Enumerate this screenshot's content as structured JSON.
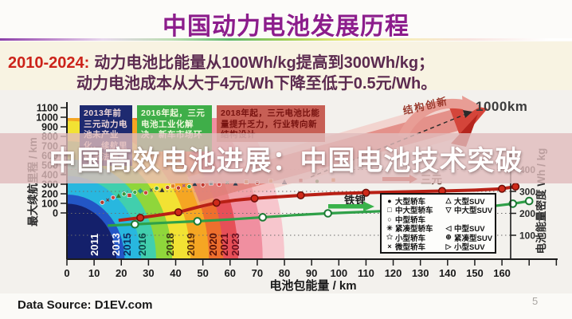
{
  "header": {
    "title": "中国动力电池发展历程"
  },
  "banner": {
    "period": "2010-2024:",
    "line1": "动力电池比能量从100Wh/kg提高到300Wh/kg；",
    "line2": "动力电池成本从大于4元/Wh下降至低于0.5元/Wh。"
  },
  "watermark": {
    "text": "中国高效电池进展：中国电池技术突破"
  },
  "footer": {
    "source": "Data Source: D1EV.com",
    "page": "5"
  },
  "chart_data": {
    "type": "line",
    "title": "中国动力电池发展历程",
    "x_axis": {
      "label": "电池包能量 / km",
      "ticks": [
        0,
        10,
        20,
        30,
        40,
        50,
        60,
        70,
        80,
        90,
        100,
        110,
        120,
        130,
        140,
        150,
        160
      ],
      "range": [
        0,
        160
      ]
    },
    "y_axis_left": {
      "label": "最大续航里程 / km",
      "ticks": [
        1100,
        1000,
        900,
        800,
        700,
        600,
        500,
        400,
        300,
        200,
        100,
        0
      ],
      "range": [
        0,
        1100
      ]
    },
    "y_axis_right": {
      "label": "电池能量密度 Wh / kg",
      "ticks": [
        400,
        300,
        200,
        100
      ],
      "range": [
        0,
        400
      ],
      "gridlines": [
        400,
        300,
        200,
        100
      ]
    },
    "annotations": {
      "innovation": "结构创新",
      "target": "1000km",
      "ternary": "三元",
      "lfp": "铁锂"
    },
    "info_boxes": [
      {
        "text": "2013年前三元动力电池未产业化，续航里程无法满足"
      },
      {
        "text": "2016年起，三元电池工业化解决，新车市场环"
      },
      {
        "text": "2018年起，三元电池比能量提升乏力，行业转向新结构设计"
      }
    ],
    "year_bands": [
      {
        "color": "#14206b",
        "outer_kwh": 18.2
      },
      {
        "color": "#2356c6",
        "outer_kwh": 21.2
      },
      {
        "color": "#28b7df",
        "outer_kwh": 27.3
      },
      {
        "color": "#41cfad",
        "outer_kwh": 32.8
      },
      {
        "color": "#8fd63b",
        "outer_kwh": 38.7
      },
      {
        "color": "#f2e233",
        "outer_kwh": 45.4
      },
      {
        "color": "#f5a623",
        "outer_kwh": 52.2
      },
      {
        "color": "#ee6f2d",
        "outer_kwh": 57.5
      },
      {
        "color": "#e64f58",
        "outer_kwh": 63.0
      },
      {
        "color": "#f08fa0",
        "outer_kwh": 72.0
      },
      {
        "color": "#f7c6cd",
        "outer_kwh": 80.0
      }
    ],
    "year_labels": [
      {
        "year": "2011",
        "x_kwh": 11.4,
        "color": "#ffffff"
      },
      {
        "year": "2013",
        "x_kwh": 19.3,
        "color": "#ffffff"
      },
      {
        "year": "2015",
        "x_kwh": 23.4,
        "color": "#0d2a5e"
      },
      {
        "year": "2016",
        "x_kwh": 29.0,
        "color": "#0d4a4a"
      },
      {
        "year": "2018",
        "x_kwh": 39.3,
        "color": "#3a3a10"
      },
      {
        "year": "2019",
        "x_kwh": 46.9,
        "color": "#5a2d08"
      },
      {
        "year": "2020",
        "x_kwh": 55.1,
        "color": "#5a1208"
      },
      {
        "year": "2021",
        "x_kwh": 59.2,
        "color": "#5a0a12"
      },
      {
        "year": "2023",
        "x_kwh": 63.3,
        "color": "#6b1020"
      }
    ],
    "series": [
      {
        "name": "三元",
        "color": "#b82015",
        "marker": "filled",
        "marker_fill": "#cf2a1a",
        "marker_edge": "#6e0f08",
        "points": [
          [
            19,
            168
          ],
          [
            27,
            180
          ],
          [
            34,
            192
          ],
          [
            41,
            205
          ],
          [
            48,
            228
          ],
          [
            55,
            248
          ],
          [
            62,
            260
          ],
          [
            69,
            268
          ],
          [
            76,
            274
          ],
          [
            86,
            282
          ],
          [
            98,
            290
          ],
          [
            110,
            294
          ],
          [
            124,
            298
          ],
          [
            138,
            302
          ],
          [
            150,
            306
          ],
          [
            160,
            312
          ],
          [
            165,
            322
          ]
        ]
      },
      {
        "name": "铁锂",
        "color": "#2fa048",
        "marker": "open",
        "marker_fill": "#ffffff",
        "marker_edge": "#1d7a34",
        "points": [
          [
            15,
            144
          ],
          [
            25,
            150
          ],
          [
            36,
            157
          ],
          [
            48,
            164
          ],
          [
            60,
            172
          ],
          [
            72,
            182
          ],
          [
            84,
            192
          ],
          [
            96,
            200
          ],
          [
            108,
            206
          ],
          [
            120,
            212
          ],
          [
            132,
            218
          ],
          [
            144,
            224
          ],
          [
            156,
            232
          ],
          [
            164,
            244
          ],
          [
            170,
            256
          ]
        ]
      }
    ],
    "scatter": [
      [
        13,
        250,
        "c",
        "#b23a2e"
      ],
      [
        15,
        262,
        "x",
        "#7d1f1f"
      ],
      [
        17,
        272,
        "c",
        "#c8433a"
      ],
      [
        19,
        280,
        "t",
        "#2f7d33"
      ],
      [
        21,
        288,
        "c",
        "#37983d"
      ],
      [
        23,
        282,
        "s",
        "#bf3a30"
      ],
      [
        25,
        296,
        "c",
        "#44a64a"
      ],
      [
        27,
        302,
        "d",
        "#2a9d8f"
      ],
      [
        29,
        294,
        "c",
        "#c8433a"
      ],
      [
        31,
        308,
        "x",
        "#555555"
      ],
      [
        33,
        314,
        "c",
        "#37983d"
      ],
      [
        35,
        306,
        "t",
        "#333333"
      ],
      [
        37,
        318,
        "c",
        "#b23a2e"
      ],
      [
        39,
        324,
        "s",
        "#e07b26"
      ],
      [
        41,
        316,
        "c",
        "#c03a2e"
      ],
      [
        43,
        328,
        "x",
        "#8e44ad"
      ],
      [
        45,
        322,
        "c",
        "#2f9d45"
      ],
      [
        47,
        334,
        "t",
        "#2c3e50"
      ],
      [
        50,
        330,
        "c",
        "#bf3a30"
      ],
      [
        53,
        338,
        "s",
        "#7f8c8d"
      ],
      [
        56,
        332,
        "c",
        "#dd4444"
      ],
      [
        59,
        342,
        "x",
        "#16a085"
      ],
      [
        62,
        336,
        "t",
        "#2c3e50"
      ],
      [
        66,
        344,
        "s",
        "#d35400"
      ],
      [
        70,
        340,
        "c",
        "#bf3a30"
      ],
      [
        75,
        348,
        "s",
        "#e07b26"
      ],
      [
        80,
        344,
        "t",
        "#2c3e50"
      ],
      [
        86,
        350,
        "s",
        "#b23a2e"
      ],
      [
        92,
        346,
        "c",
        "#2f7d33"
      ],
      [
        98,
        352,
        "s",
        "#e07b26"
      ]
    ],
    "legend": {
      "col1": [
        {
          "symbol": "●",
          "label": "大型轿车"
        },
        {
          "symbol": "□",
          "label": "中大型轿车"
        },
        {
          "symbol": "○",
          "label": "中型轿车"
        },
        {
          "symbol": "✳",
          "label": "紧凑型轿车"
        },
        {
          "symbol": "✩",
          "label": "小型轿车"
        },
        {
          "symbol": "×",
          "label": "微型轿车"
        }
      ],
      "col2": [
        {
          "symbol": "△",
          "label": "大型SUV"
        },
        {
          "symbol": "▽",
          "label": "中大型SUV"
        },
        {
          "symbol": "",
          "label": ""
        },
        {
          "symbol": "◁",
          "label": "中型SUV"
        },
        {
          "symbol": "⊕",
          "label": "紧凑型SUV"
        },
        {
          "symbol": "▷",
          "label": "小型SUV"
        }
      ]
    },
    "colors": {
      "overlay": "#e0bcbc",
      "title": "#8c1d8c",
      "banner_period": "#cc231a",
      "banner_text": "#5c2b50",
      "arrow": "#e08078"
    }
  }
}
